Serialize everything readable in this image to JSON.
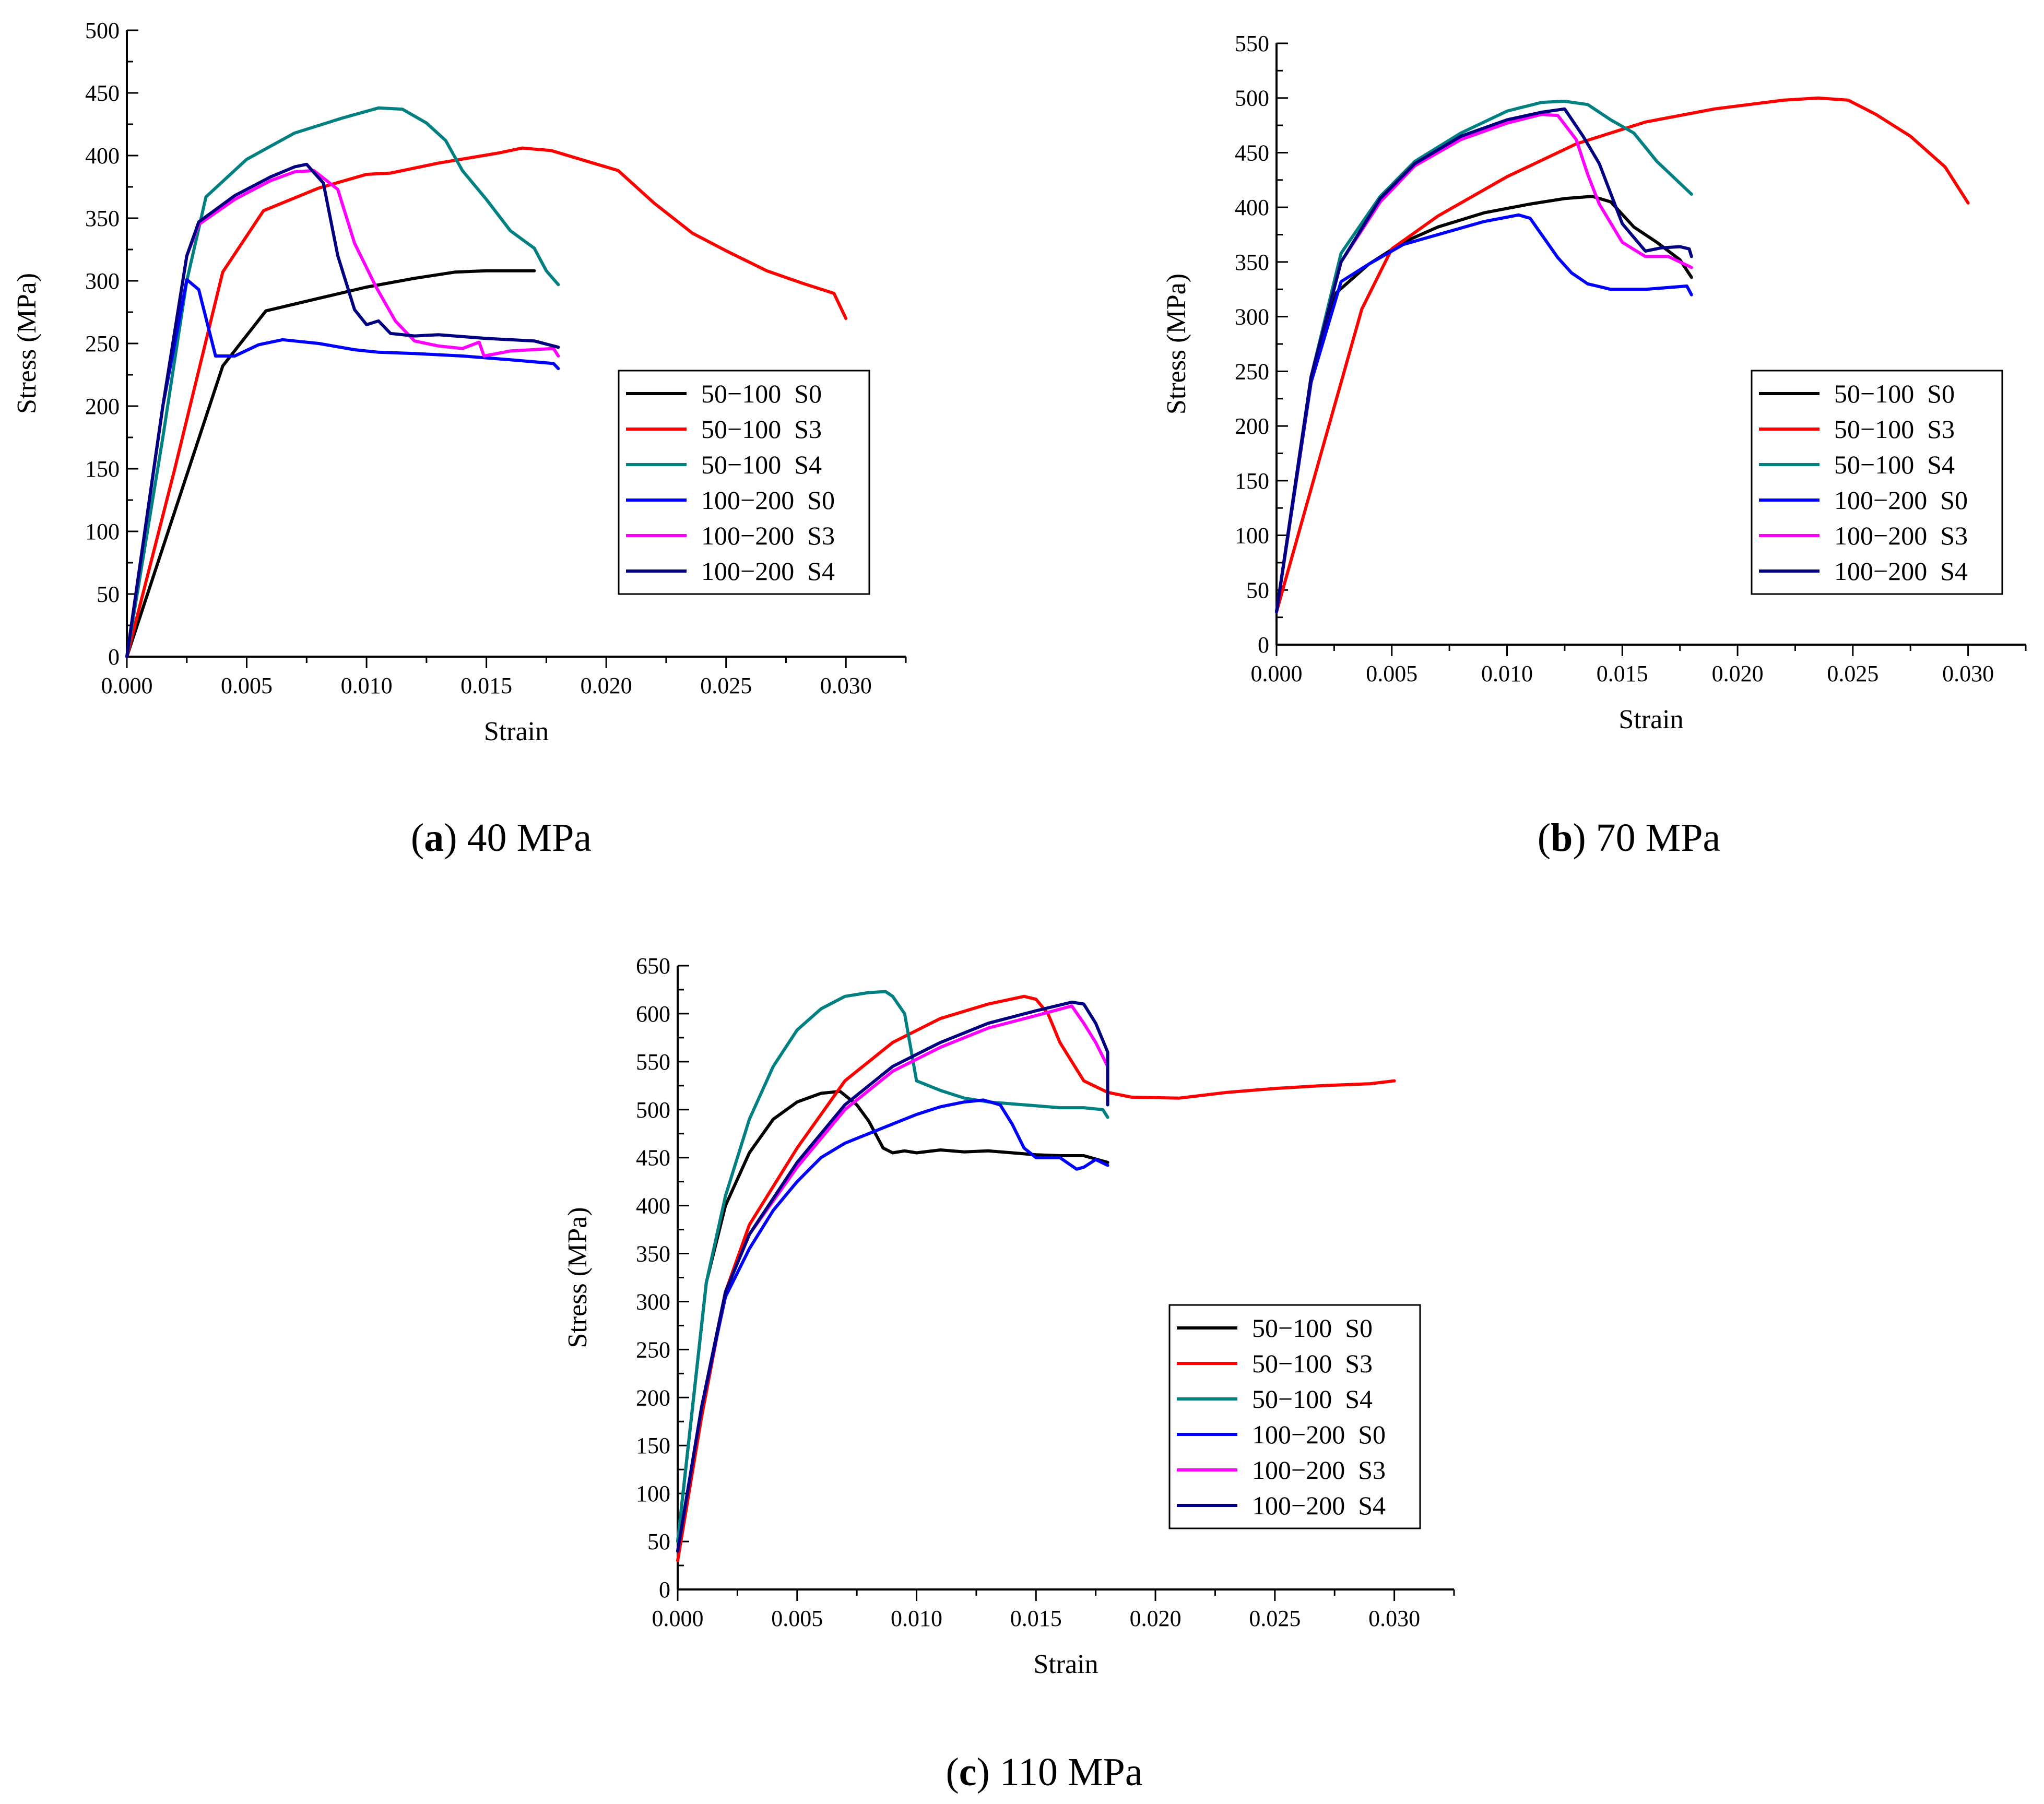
{
  "chart_data": [
    {
      "type": "line",
      "caption_letter": "a",
      "caption_text": "40 MPa",
      "xlabel": "Strain",
      "ylabel": "Stress (MPa)",
      "xlim": [
        0,
        0.0325
      ],
      "ylim": [
        0,
        500
      ],
      "xticks": [
        0.0,
        0.005,
        0.01,
        0.015,
        0.02,
        0.025,
        0.03
      ],
      "xtick_labels": [
        "0.000",
        "0.005",
        "0.010",
        "0.015",
        "0.020",
        "0.025",
        "0.030"
      ],
      "yticks": [
        0,
        50,
        100,
        150,
        200,
        250,
        300,
        350,
        400,
        450,
        500
      ],
      "ytick_labels": [
        "0",
        "50",
        "100",
        "150",
        "200",
        "250",
        "300",
        "350",
        "400",
        "450",
        "500"
      ],
      "series": [
        {
          "name": "50-100 S0",
          "color": "#000000",
          "x": [
            0,
            0.004,
            0.0058,
            0.008,
            0.01,
            0.012,
            0.0137,
            0.015,
            0.017
          ],
          "y": [
            0,
            232,
            276,
            286,
            295,
            302,
            307,
            308,
            308
          ]
        },
        {
          "name": "50-100 S3",
          "color": "#ff0000",
          "x": [
            0,
            0.002,
            0.004,
            0.0057,
            0.008,
            0.01,
            0.011,
            0.013,
            0.0155,
            0.0165,
            0.0177,
            0.0205,
            0.022,
            0.0236,
            0.025,
            0.0267,
            0.0282,
            0.0295,
            0.03
          ],
          "y": [
            0,
            150,
            307,
            356,
            374,
            385,
            386,
            394,
            402,
            406,
            404,
            388,
            362,
            338,
            324,
            308,
            298,
            290,
            270
          ]
        },
        {
          "name": "50-100 S4",
          "color": "#008080",
          "x": [
            0,
            0.0015,
            0.0025,
            0.0033,
            0.005,
            0.007,
            0.009,
            0.0105,
            0.0115,
            0.0125,
            0.0133,
            0.014,
            0.015,
            0.016,
            0.017,
            0.0175,
            0.018
          ],
          "y": [
            0,
            175,
            300,
            367,
            397,
            418,
            430,
            438,
            437,
            426,
            412,
            388,
            365,
            340,
            326,
            308,
            297
          ]
        },
        {
          "name": "100-200 S0",
          "color": "#0000ff",
          "x": [
            0,
            0.0015,
            0.0025,
            0.003,
            0.0037,
            0.0045,
            0.0055,
            0.0065,
            0.008,
            0.0095,
            0.0105,
            0.012,
            0.014,
            0.016,
            0.0178,
            0.018
          ],
          "y": [
            0,
            200,
            301,
            293,
            240,
            240,
            249,
            253,
            250,
            245,
            243,
            242,
            240,
            237,
            234,
            230
          ]
        },
        {
          "name": "100-200 S3",
          "color": "#ff00ff",
          "x": [
            0,
            0.0015,
            0.0025,
            0.003,
            0.0045,
            0.006,
            0.007,
            0.0078,
            0.0088,
            0.0095,
            0.0104,
            0.0112,
            0.012,
            0.013,
            0.014,
            0.0147,
            0.0149,
            0.016,
            0.0178,
            0.018
          ],
          "y": [
            0,
            200,
            320,
            345,
            365,
            380,
            387,
            388,
            373,
            330,
            295,
            268,
            252,
            248,
            246,
            251,
            240,
            244,
            246,
            240
          ]
        },
        {
          "name": "100-200 S4",
          "color": "#000080",
          "x": [
            0,
            0.0015,
            0.0025,
            0.003,
            0.0045,
            0.006,
            0.007,
            0.0075,
            0.0082,
            0.0088,
            0.0095,
            0.01,
            0.0105,
            0.011,
            0.012,
            0.013,
            0.015,
            0.017,
            0.018
          ],
          "y": [
            0,
            200,
            320,
            347,
            368,
            383,
            391,
            393,
            378,
            320,
            277,
            265,
            268,
            258,
            256,
            257,
            254,
            252,
            247
          ]
        }
      ]
    },
    {
      "type": "line",
      "caption_letter": "b",
      "caption_text": "70 MPa",
      "xlabel": "Strain",
      "ylabel": "Stress (MPa)",
      "xlim": [
        0,
        0.0325
      ],
      "ylim": [
        0,
        550
      ],
      "xticks": [
        0.0,
        0.005,
        0.01,
        0.015,
        0.02,
        0.025,
        0.03
      ],
      "xtick_labels": [
        "0.000",
        "0.005",
        "0.010",
        "0.015",
        "0.020",
        "0.025",
        "0.030"
      ],
      "yticks": [
        0,
        50,
        100,
        150,
        200,
        250,
        300,
        350,
        400,
        450,
        500,
        550
      ],
      "ytick_labels": [
        "0",
        "50",
        "100",
        "150",
        "200",
        "250",
        "300",
        "350",
        "400",
        "450",
        "500",
        "550"
      ],
      "series": [
        {
          "name": "50-100 S0",
          "color": "#000000",
          "x": [
            0,
            0.0015,
            0.0026,
            0.004,
            0.0055,
            0.007,
            0.009,
            0.011,
            0.0125,
            0.0137,
            0.0145,
            0.0155,
            0.0165,
            0.0175,
            0.018
          ],
          "y": [
            30,
            240,
            322,
            348,
            368,
            382,
            395,
            403,
            408,
            410,
            405,
            382,
            368,
            352,
            336
          ]
        },
        {
          "name": "50-100 S3",
          "color": "#ff0000",
          "x": [
            0,
            0.002,
            0.0037,
            0.005,
            0.007,
            0.01,
            0.013,
            0.016,
            0.019,
            0.022,
            0.0235,
            0.0248,
            0.026,
            0.0275,
            0.029,
            0.03
          ],
          "y": [
            30,
            180,
            307,
            362,
            392,
            428,
            458,
            478,
            490,
            498,
            500,
            498,
            485,
            465,
            437,
            404
          ]
        },
        {
          "name": "50-100 S4",
          "color": "#008080",
          "x": [
            0,
            0.0015,
            0.0028,
            0.0045,
            0.006,
            0.008,
            0.01,
            0.0115,
            0.0125,
            0.0135,
            0.0145,
            0.0155,
            0.0165,
            0.018
          ],
          "y": [
            30,
            245,
            358,
            410,
            442,
            468,
            488,
            496,
            497,
            494,
            480,
            468,
            442,
            412
          ]
        },
        {
          "name": "100-200 S0",
          "color": "#0000ff",
          "x": [
            0,
            0.0015,
            0.0028,
            0.004,
            0.0055,
            0.007,
            0.009,
            0.0105,
            0.011,
            0.0115,
            0.0122,
            0.0128,
            0.0135,
            0.0145,
            0.016,
            0.0178,
            0.018
          ],
          "y": [
            30,
            240,
            332,
            348,
            366,
            375,
            387,
            393,
            390,
            375,
            354,
            340,
            330,
            325,
            325,
            328,
            320
          ]
        },
        {
          "name": "100-200 S3",
          "color": "#ff00ff",
          "x": [
            0,
            0.0015,
            0.0028,
            0.0045,
            0.006,
            0.008,
            0.01,
            0.0115,
            0.0122,
            0.013,
            0.0135,
            0.014,
            0.015,
            0.016,
            0.017,
            0.018
          ],
          "y": [
            30,
            245,
            350,
            405,
            438,
            462,
            477,
            485,
            484,
            462,
            430,
            403,
            368,
            355,
            355,
            345
          ]
        },
        {
          "name": "100-200 S4",
          "color": "#000080",
          "x": [
            0,
            0.0015,
            0.0028,
            0.0045,
            0.006,
            0.008,
            0.01,
            0.0115,
            0.0125,
            0.0133,
            0.014,
            0.015,
            0.016,
            0.0167,
            0.0175,
            0.0179,
            0.018
          ],
          "y": [
            30,
            245,
            350,
            408,
            440,
            465,
            480,
            487,
            490,
            465,
            440,
            385,
            360,
            363,
            364,
            362,
            355
          ]
        }
      ]
    },
    {
      "type": "line",
      "caption_letter": "c",
      "caption_text": "110 MPa",
      "xlabel": "Strain",
      "ylabel": "Stress (MPa)",
      "xlim": [
        0,
        0.0325
      ],
      "ylim": [
        0,
        650
      ],
      "xticks": [
        0.0,
        0.005,
        0.01,
        0.015,
        0.02,
        0.025,
        0.03
      ],
      "xtick_labels": [
        "0.000",
        "0.005",
        "0.010",
        "0.015",
        "0.020",
        "0.025",
        "0.030"
      ],
      "yticks": [
        0,
        50,
        100,
        150,
        200,
        250,
        300,
        350,
        400,
        450,
        500,
        550,
        600,
        650
      ],
      "ytick_labels": [
        "0",
        "50",
        "100",
        "150",
        "200",
        "250",
        "300",
        "350",
        "400",
        "450",
        "500",
        "550",
        "600",
        "650"
      ],
      "series": [
        {
          "name": "50-100 S0",
          "color": "#000000",
          "x": [
            0,
            0.0012,
            0.002,
            0.003,
            0.004,
            0.005,
            0.006,
            0.0068,
            0.0075,
            0.008,
            0.0086,
            0.009,
            0.0095,
            0.01,
            0.011,
            0.012,
            0.013,
            0.014,
            0.015,
            0.016,
            0.017,
            0.018
          ],
          "y": [
            50,
            320,
            400,
            455,
            490,
            508,
            517,
            519,
            505,
            488,
            460,
            455,
            457,
            455,
            458,
            456,
            457,
            455,
            453,
            452,
            452,
            445
          ]
        },
        {
          "name": "50-100 S3",
          "color": "#ff0000",
          "x": [
            0,
            0.001,
            0.002,
            0.003,
            0.005,
            0.007,
            0.009,
            0.011,
            0.013,
            0.0145,
            0.015,
            0.0155,
            0.016,
            0.017,
            0.018,
            0.019,
            0.021,
            0.023,
            0.025,
            0.027,
            0.029,
            0.03
          ],
          "y": [
            30,
            180,
            310,
            380,
            460,
            530,
            570,
            595,
            610,
            618,
            615,
            600,
            570,
            530,
            518,
            513,
            512,
            518,
            522,
            525,
            527,
            530
          ]
        },
        {
          "name": "50-100 S4",
          "color": "#008080",
          "x": [
            0,
            0.0012,
            0.002,
            0.003,
            0.004,
            0.005,
            0.006,
            0.007,
            0.008,
            0.0087,
            0.009,
            0.0095,
            0.01,
            0.011,
            0.012,
            0.013,
            0.014,
            0.015,
            0.016,
            0.017,
            0.0178,
            0.018
          ],
          "y": [
            50,
            320,
            410,
            490,
            545,
            583,
            605,
            618,
            622,
            623,
            618,
            600,
            530,
            520,
            512,
            508,
            506,
            504,
            502,
            502,
            500,
            492
          ]
        },
        {
          "name": "100-200 S0",
          "color": "#0000ff",
          "x": [
            0,
            0.001,
            0.002,
            0.003,
            0.004,
            0.005,
            0.006,
            0.007,
            0.008,
            0.009,
            0.01,
            0.011,
            0.012,
            0.0128,
            0.0135,
            0.014,
            0.0145,
            0.015,
            0.016,
            0.0167,
            0.017,
            0.0175,
            0.018
          ],
          "y": [
            40,
            190,
            305,
            355,
            395,
            425,
            450,
            465,
            475,
            485,
            495,
            503,
            508,
            510,
            505,
            485,
            460,
            450,
            450,
            438,
            440,
            448,
            442
          ]
        },
        {
          "name": "100-200 S3",
          "color": "#ff00ff",
          "x": [
            0,
            0.001,
            0.002,
            0.003,
            0.005,
            0.007,
            0.009,
            0.011,
            0.013,
            0.015,
            0.0165,
            0.017,
            0.0175,
            0.018
          ],
          "y": [
            40,
            190,
            310,
            370,
            440,
            500,
            540,
            565,
            585,
            598,
            608,
            590,
            570,
            545
          ]
        },
        {
          "name": "100-200 S4",
          "color": "#000080",
          "x": [
            0,
            0.001,
            0.002,
            0.003,
            0.005,
            0.007,
            0.009,
            0.011,
            0.013,
            0.015,
            0.0165,
            0.017,
            0.0175,
            0.018,
            0.018
          ],
          "y": [
            40,
            190,
            310,
            370,
            445,
            505,
            545,
            570,
            590,
            603,
            612,
            610,
            590,
            560,
            505
          ]
        }
      ]
    }
  ]
}
